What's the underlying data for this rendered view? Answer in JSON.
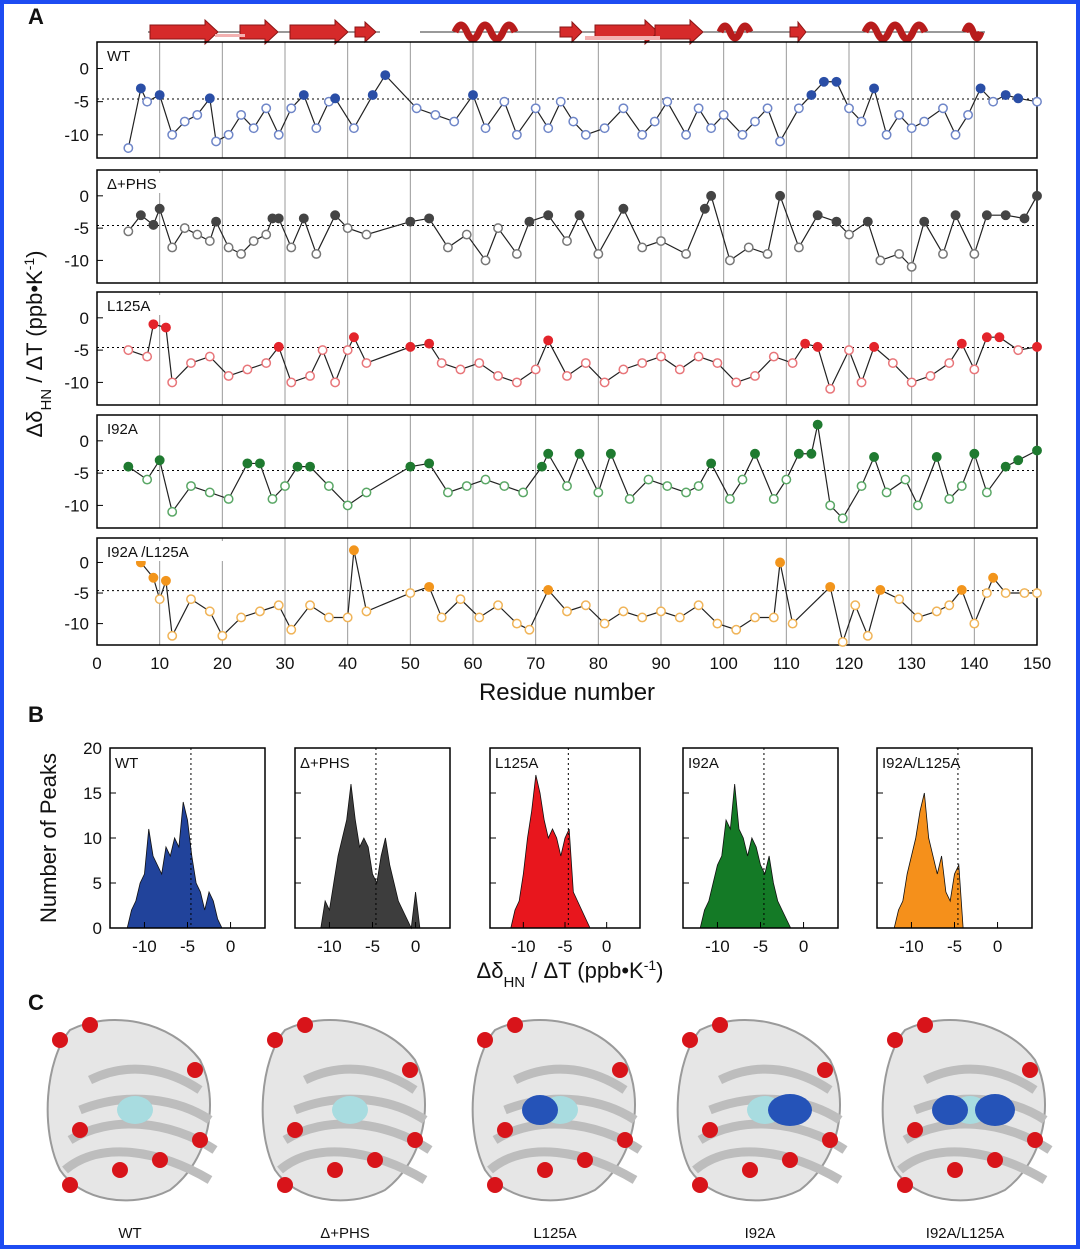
{
  "panel_labels": [
    "A",
    "B",
    "C"
  ],
  "structures": [
    "WT",
    "Δ+PHS",
    "L125A",
    "I92A",
    "I92A/L125A"
  ],
  "chart_data": [
    {
      "type": "line",
      "title": "WT",
      "color": "#2a4ea6",
      "open_color": "#6f86c8",
      "threshold": -4.6,
      "xlim": [
        0,
        150
      ],
      "xticks": [
        0,
        10,
        20,
        30,
        40,
        50,
        60,
        70,
        80,
        90,
        100,
        110,
        120,
        130,
        140,
        150
      ],
      "xtick_labels": false,
      "ylim": [
        -13.5,
        4
      ],
      "yticks": [
        0,
        -5,
        -10
      ],
      "ylabel": [
        "Δδ",
        "HN",
        " / ΔT (ppb•K",
        "-1",
        ")"
      ],
      "x": [
        5,
        7,
        8,
        10,
        12,
        14,
        16,
        18,
        19,
        21,
        23,
        25,
        27,
        29,
        31,
        33,
        35,
        37,
        38,
        41,
        44,
        46,
        51,
        54,
        57,
        60,
        62,
        65,
        67,
        70,
        72,
        74,
        76,
        78,
        81,
        84,
        87,
        89,
        91,
        94,
        96,
        98,
        100,
        103,
        105,
        107,
        109,
        112,
        114,
        116,
        118,
        120,
        122,
        124,
        126,
        128,
        130,
        132,
        135,
        137,
        139,
        141,
        143,
        145,
        147,
        150
      ],
      "values": [
        -12,
        -3,
        -5,
        -4,
        -10,
        -8,
        -7,
        -4.5,
        -11,
        -10,
        -7,
        -9,
        -6,
        -10,
        -6,
        -4,
        -9,
        -5,
        -4.5,
        -9,
        -4,
        -1,
        -6,
        -7,
        -8,
        -4,
        -9,
        -5,
        -10,
        -6,
        -9,
        -5,
        -8,
        -10,
        -9,
        -6,
        -10,
        -8,
        -5,
        -10,
        -6,
        -9,
        -7,
        -10,
        -8,
        -6,
        -11,
        -6,
        -4,
        -2,
        -2,
        -6,
        -8,
        -3,
        -10,
        -7,
        -9,
        -8,
        -6,
        -10,
        -7,
        -3,
        -5,
        -4,
        -4.5,
        -5
      ]
    },
    {
      "type": "line",
      "title": "Δ+PHS",
      "color": "#444444",
      "open_color": "#777777",
      "threshold": -4.6,
      "xlim": [
        0,
        150
      ],
      "xticks": [
        0,
        10,
        20,
        30,
        40,
        50,
        60,
        70,
        80,
        90,
        100,
        110,
        120,
        130,
        140,
        150
      ],
      "xtick_labels": false,
      "ylim": [
        -13.5,
        4
      ],
      "yticks": [
        0,
        -5,
        -10
      ],
      "x": [
        5,
        7,
        9,
        10,
        12,
        14,
        16,
        18,
        19,
        21,
        23,
        25,
        27,
        28,
        29,
        31,
        33,
        35,
        38,
        40,
        43,
        50,
        53,
        56,
        59,
        62,
        64,
        67,
        69,
        72,
        75,
        77,
        80,
        84,
        87,
        90,
        94,
        97,
        98,
        101,
        104,
        107,
        109,
        112,
        115,
        118,
        120,
        123,
        125,
        128,
        130,
        132,
        135,
        137,
        140,
        142,
        145,
        148,
        150
      ],
      "values": [
        -5.5,
        -3,
        -4.5,
        -2,
        -8,
        -5,
        -6,
        -7,
        -4,
        -8,
        -9,
        -7,
        -6,
        -3.5,
        -3.5,
        -8,
        -3.5,
        -9,
        -3,
        -5,
        -6,
        -4,
        -3.5,
        -8,
        -6,
        -10,
        -5,
        -9,
        -4,
        -3,
        -7,
        -3,
        -9,
        -2,
        -8,
        -7,
        -9,
        -2,
        0,
        -10,
        -8,
        -9,
        0,
        -8,
        -3,
        -4,
        -6,
        -4,
        -10,
        -9,
        -11,
        -4,
        -9,
        -3,
        -9,
        -3,
        -3,
        -3.5,
        0
      ]
    },
    {
      "type": "line",
      "title": "L125A",
      "color": "#e3242b",
      "open_color": "#e8767a",
      "threshold": -4.6,
      "xlim": [
        0,
        150
      ],
      "xticks": [
        0,
        10,
        20,
        30,
        40,
        50,
        60,
        70,
        80,
        90,
        100,
        110,
        120,
        130,
        140,
        150
      ],
      "xtick_labels": false,
      "ylim": [
        -13.5,
        4
      ],
      "yticks": [
        0,
        -5,
        -10
      ],
      "x": [
        5,
        8,
        9,
        11,
        12,
        15,
        18,
        21,
        24,
        27,
        29,
        31,
        34,
        36,
        38,
        40,
        41,
        43,
        50,
        53,
        55,
        58,
        61,
        64,
        67,
        70,
        72,
        75,
        78,
        81,
        84,
        87,
        90,
        93,
        96,
        99,
        102,
        105,
        108,
        111,
        113,
        115,
        117,
        120,
        122,
        124,
        127,
        130,
        133,
        136,
        138,
        140,
        142,
        144,
        147,
        150
      ],
      "values": [
        -5,
        -6,
        -1,
        -1.5,
        -10,
        -7,
        -6,
        -9,
        -8,
        -7,
        -4.5,
        -10,
        -9,
        -5,
        -10,
        -5,
        -3,
        -7,
        -4.5,
        -4,
        -7,
        -8,
        -7,
        -9,
        -10,
        -8,
        -3.5,
        -9,
        -7,
        -10,
        -8,
        -7,
        -6,
        -8,
        -6,
        -7,
        -10,
        -9,
        -6,
        -7,
        -4,
        -4.5,
        -11,
        -5,
        -10,
        -4.5,
        -7,
        -10,
        -9,
        -7,
        -4,
        -8,
        -3,
        -3,
        -5,
        -4.5
      ]
    },
    {
      "type": "line",
      "title": "I92A",
      "color": "#1f7a30",
      "open_color": "#5aa766",
      "threshold": -4.6,
      "xlim": [
        0,
        150
      ],
      "xticks": [
        0,
        10,
        20,
        30,
        40,
        50,
        60,
        70,
        80,
        90,
        100,
        110,
        120,
        130,
        140,
        150
      ],
      "xtick_labels": false,
      "ylim": [
        -13.5,
        4
      ],
      "yticks": [
        0,
        -5,
        -10
      ],
      "x": [
        5,
        8,
        10,
        12,
        15,
        18,
        21,
        24,
        26,
        28,
        30,
        32,
        34,
        37,
        40,
        43,
        50,
        53,
        56,
        59,
        62,
        65,
        68,
        71,
        72,
        75,
        77,
        80,
        82,
        85,
        88,
        91,
        94,
        96,
        98,
        101,
        103,
        105,
        108,
        110,
        112,
        114,
        115,
        117,
        119,
        122,
        124,
        126,
        129,
        131,
        134,
        136,
        138,
        140,
        142,
        145,
        147,
        150
      ],
      "values": [
        -4,
        -6,
        -3,
        -11,
        -7,
        -8,
        -9,
        -3.5,
        -3.5,
        -9,
        -7,
        -4,
        -4,
        -7,
        -10,
        -8,
        -4,
        -3.5,
        -8,
        -7,
        -6,
        -7,
        -8,
        -4,
        -2,
        -7,
        -2,
        -8,
        -2,
        -9,
        -6,
        -7,
        -8,
        -7,
        -3.5,
        -9,
        -6,
        -2,
        -9,
        -6,
        -2,
        -2,
        2.5,
        -10,
        -12,
        -7,
        -2.5,
        -8,
        -6,
        -10,
        -2.5,
        -9,
        -7,
        -2,
        -8,
        -4,
        -3,
        -1.5
      ]
    },
    {
      "type": "line",
      "title": "I92A /L125A",
      "color": "#f2951c",
      "open_color": "#f0b458",
      "threshold": -4.6,
      "xlim": [
        0,
        150
      ],
      "xticks": [
        0,
        10,
        20,
        30,
        40,
        50,
        60,
        70,
        80,
        90,
        100,
        110,
        120,
        130,
        140,
        150
      ],
      "xtick_labels": true,
      "ylim": [
        -13.5,
        4
      ],
      "yticks": [
        0,
        -5,
        -10
      ],
      "xlabel": "Residue number",
      "x": [
        7,
        9,
        10,
        11,
        12,
        15,
        18,
        20,
        23,
        26,
        29,
        31,
        34,
        37,
        40,
        41,
        43,
        50,
        53,
        55,
        58,
        61,
        64,
        67,
        69,
        72,
        75,
        78,
        81,
        84,
        87,
        90,
        93,
        96,
        99,
        102,
        105,
        108,
        109,
        111,
        117,
        119,
        121,
        123,
        125,
        128,
        131,
        134,
        136,
        138,
        140,
        142,
        143,
        145,
        148,
        150
      ],
      "values": [
        0,
        -2.5,
        -6,
        -3,
        -12,
        -6,
        -8,
        -12,
        -9,
        -8,
        -7,
        -11,
        -7,
        -9,
        -9,
        2,
        -8,
        -5,
        -4,
        -9,
        -6,
        -9,
        -7,
        -10,
        -11,
        -4.5,
        -8,
        -7,
        -10,
        -8,
        -9,
        -8,
        -9,
        -7,
        -10,
        -11,
        -9,
        -9,
        0,
        -10,
        -4,
        -13,
        -7,
        -12,
        -4.5,
        -6,
        -9,
        -8,
        -7,
        -4.5,
        -10,
        -5,
        -2.5,
        -5,
        -5,
        -5
      ]
    },
    {
      "type": "area",
      "title": "WT",
      "color": "#21439b",
      "threshold": -4.6,
      "xlim": [
        -14,
        4
      ],
      "xticks": [
        -10,
        -5,
        0
      ],
      "ylim": [
        0,
        20
      ],
      "yticks": [
        0,
        5,
        10,
        15,
        20
      ],
      "ytick_labels": true,
      "ylabel": "Number of Peaks",
      "x": [
        -12,
        -11.5,
        -11,
        -10.5,
        -10,
        -9.5,
        -9,
        -8.5,
        -8,
        -7.5,
        -7,
        -6.5,
        -6,
        -5.5,
        -5,
        -4.5,
        -4,
        -3.5,
        -3,
        -2.5,
        -2,
        -1.5,
        -1
      ],
      "values": [
        0,
        2,
        3,
        5,
        6,
        11,
        8,
        7,
        6,
        9,
        8,
        10,
        9,
        14,
        12,
        8,
        5,
        4,
        2,
        4,
        3,
        1,
        0
      ]
    },
    {
      "type": "area",
      "title": "Δ+PHS",
      "color": "#3d3d3d",
      "threshold": -4.6,
      "xlim": [
        -14,
        4
      ],
      "xticks": [
        -10,
        -5,
        0
      ],
      "ylim": [
        0,
        20
      ],
      "yticks": [
        0,
        5,
        10,
        15,
        20
      ],
      "ytick_labels": false,
      "x": [
        -11,
        -10.5,
        -10,
        -9.5,
        -9,
        -8.5,
        -8,
        -7.5,
        -7,
        -6.5,
        -6,
        -5.5,
        -5,
        -4.5,
        -4,
        -3.5,
        -3,
        -2.5,
        -2,
        -1.5,
        -1,
        -0.5,
        0,
        0.5
      ],
      "values": [
        0,
        3,
        2,
        5,
        8,
        10,
        12,
        16,
        12,
        9,
        10,
        9,
        6,
        5,
        8,
        10,
        7,
        5,
        3,
        2,
        1,
        0,
        4,
        0
      ]
    },
    {
      "type": "area",
      "title": "L125A",
      "color": "#e8161d",
      "threshold": -4.6,
      "xlim": [
        -14,
        4
      ],
      "xticks": [
        -10,
        -5,
        0
      ],
      "ylim": [
        0,
        20
      ],
      "yticks": [
        0,
        5,
        10,
        15,
        20
      ],
      "ytick_labels": false,
      "xlabel": [
        "Δδ",
        "HN",
        " / ΔT (ppb•K",
        "-1",
        ")"
      ],
      "x": [
        -11.5,
        -11,
        -10.5,
        -10,
        -9.5,
        -9,
        -8.5,
        -8,
        -7.5,
        -7,
        -6.5,
        -6,
        -5.5,
        -5,
        -4.5,
        -4,
        -3.5,
        -3,
        -2.5,
        -2
      ],
      "values": [
        0,
        2,
        3,
        6,
        10,
        13,
        17,
        15,
        12,
        10,
        11,
        10,
        8,
        10,
        11,
        4,
        3,
        2,
        1,
        0
      ]
    },
    {
      "type": "area",
      "title": "I92A",
      "color": "#147a26",
      "threshold": -4.6,
      "xlim": [
        -14,
        4
      ],
      "xticks": [
        -10,
        -5,
        0
      ],
      "ylim": [
        0,
        20
      ],
      "yticks": [
        0,
        5,
        10,
        15,
        20
      ],
      "ytick_labels": false,
      "x": [
        -12,
        -11.5,
        -11,
        -10.5,
        -10,
        -9.5,
        -9,
        -8.5,
        -8,
        -7.5,
        -7,
        -6.5,
        -6,
        -5.5,
        -5,
        -4.5,
        -4,
        -3.5,
        -3,
        -2.5,
        -2,
        -1.5
      ],
      "values": [
        0,
        2,
        3,
        5,
        7,
        8,
        12,
        11,
        16,
        11,
        10,
        8,
        10,
        9,
        7,
        6,
        8,
        5,
        3,
        2,
        1,
        0
      ]
    },
    {
      "type": "area",
      "title": "I92A/L125A",
      "color": "#f5901b",
      "threshold": -4.6,
      "xlim": [
        -14,
        4
      ],
      "xticks": [
        -10,
        -5,
        0
      ],
      "ylim": [
        0,
        20
      ],
      "yticks": [
        0,
        5,
        10,
        15,
        20
      ],
      "ytick_labels": false,
      "x": [
        -12,
        -11.5,
        -11,
        -10.5,
        -10,
        -9.5,
        -9,
        -8.5,
        -8,
        -7.5,
        -7,
        -6.5,
        -6,
        -5.5,
        -5,
        -4.5,
        -4
      ],
      "values": [
        0,
        2,
        3,
        6,
        8,
        10,
        13,
        15,
        10,
        8,
        6,
        8,
        4,
        3,
        6,
        7,
        0
      ]
    }
  ]
}
